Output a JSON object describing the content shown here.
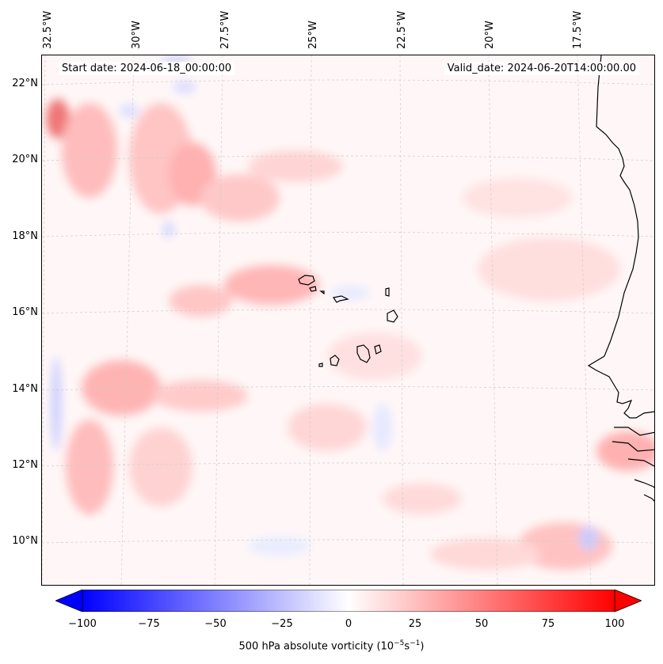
{
  "header": {
    "start_date": "Start date: 2024-06-18_00:00:00",
    "valid_date": "Valid_date: 2024-06-20T14:00:00.00"
  },
  "axes": {
    "lat_labels": [
      "22°N",
      "20°N",
      "18°N",
      "16°N",
      "14°N",
      "12°N",
      "10°N"
    ],
    "lon_labels": [
      "32.5°W",
      "30°W",
      "27.5°W",
      "25°W",
      "22.5°W",
      "20°W",
      "17.5°W"
    ]
  },
  "colorbar": {
    "label_prefix": "500 hPa absolute vorticity (10",
    "label_exp1": "−5",
    "label_mid": "s",
    "label_exp2": "−1",
    "label_suffix": ")",
    "ticks": [
      "−100",
      "−75",
      "−50",
      "−25",
      "0",
      "25",
      "50",
      "75",
      "100"
    ],
    "range": [
      -100,
      100
    ],
    "colors": {
      "min": "#0000ff",
      "mid": "#ffffff",
      "max": "#ff0000"
    }
  },
  "map": {
    "region": "Cape Verde / West Africa coast",
    "coastline_color": "#000000",
    "gridline_style": "dashed light gray"
  }
}
